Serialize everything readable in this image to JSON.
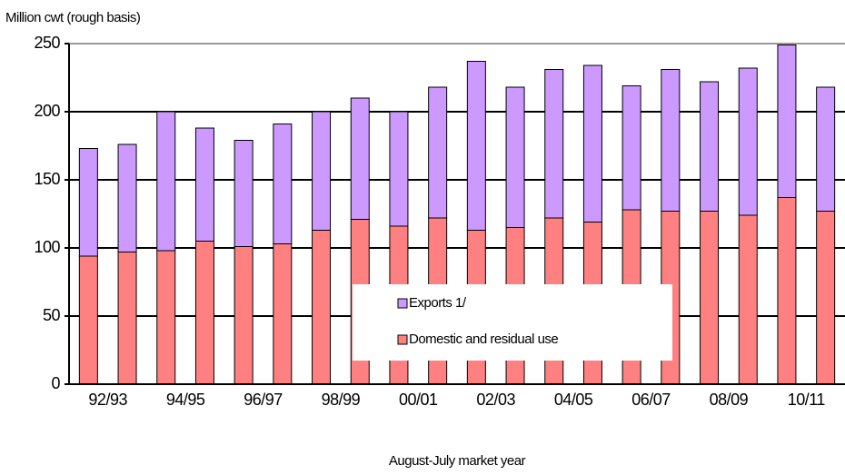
{
  "chart_data": {
    "type": "stacked-bar",
    "y_axis_label": "Million cwt (rough basis)",
    "x_axis_label": "August-July market year",
    "categories": [
      "92/93",
      null,
      "94/95",
      null,
      "96/97",
      null,
      "98/99",
      null,
      "00/01",
      null,
      "02/03",
      null,
      "04/05",
      null,
      "06/07",
      null,
      "08/09",
      null,
      "10/11",
      null
    ],
    "series": [
      {
        "name": "Domestic and residual use",
        "color": "#ff8080",
        "values": [
          94,
          97,
          98,
          105,
          101,
          103,
          113,
          121,
          116,
          122,
          113,
          115,
          122,
          119,
          128,
          127,
          127,
          124,
          137,
          127
        ]
      },
      {
        "name": "Exports 1/",
        "color": "#cc99ff",
        "values": [
          79,
          79,
          102,
          83,
          78,
          88,
          87,
          89,
          84,
          96,
          124,
          103,
          109,
          115,
          91,
          104,
          95,
          108,
          112,
          91
        ]
      }
    ],
    "ylim": [
      0,
      250
    ],
    "yticks": [
      0,
      50,
      100,
      150,
      200,
      250
    ],
    "grid": true
  }
}
